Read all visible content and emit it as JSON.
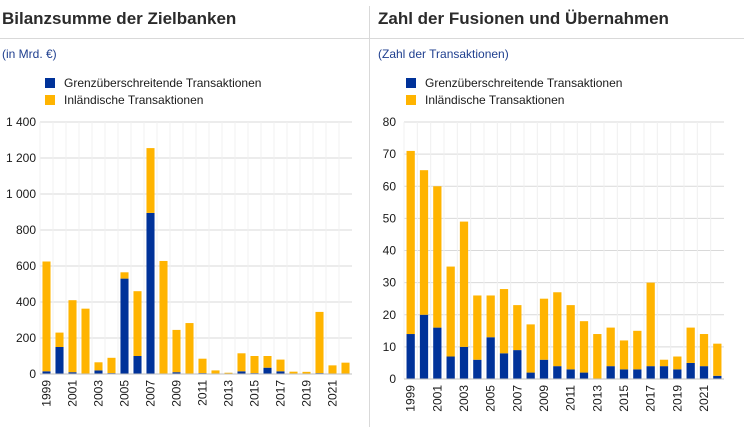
{
  "colors": {
    "cross_border": "#003299",
    "domestic": "#ffb400",
    "grid": "#d9d9d9",
    "axis": "#bfbfbf"
  },
  "chart_data": [
    {
      "type": "bar",
      "stacked": true,
      "title": "Bilanzsumme der Zielbanken",
      "unit": "(in Mrd. €)",
      "categories": [
        "1999",
        "2000",
        "2001",
        "2002",
        "2003",
        "2004",
        "2005",
        "2006",
        "2007",
        "2008",
        "2009",
        "2010",
        "2011",
        "2012",
        "2013",
        "2014",
        "2015",
        "2016",
        "2017",
        "2018",
        "2019",
        "2020",
        "2021",
        "2022"
      ],
      "x_tick_labels": [
        "1999",
        "",
        "2001",
        "",
        "2003",
        "",
        "2005",
        "",
        "2007",
        "",
        "2009",
        "",
        "2011",
        "",
        "2013",
        "",
        "2015",
        "",
        "2017",
        "",
        "2019",
        "",
        "2021",
        ""
      ],
      "ylim": [
        0,
        1400
      ],
      "y_ticks": [
        0,
        200,
        400,
        600,
        800,
        1000,
        1200,
        1400
      ],
      "y_tick_labels": [
        "0",
        "200",
        "400",
        "600",
        "800",
        "1 000",
        "1 200",
        "1 400"
      ],
      "grid": "horizontal",
      "legend_position": "top-left",
      "series": [
        {
          "name": "Grenzüberschreitende Transaktionen",
          "color": "#003299",
          "values": [
            15,
            150,
            10,
            3,
            20,
            5,
            530,
            100,
            895,
            3,
            10,
            3,
            5,
            3,
            2,
            15,
            5,
            35,
            15,
            3,
            2,
            5,
            3,
            3
          ]
        },
        {
          "name": "Inländische Transaktionen",
          "color": "#ffb400",
          "values": [
            610,
            80,
            400,
            360,
            45,
            85,
            35,
            360,
            360,
            625,
            235,
            280,
            80,
            17,
            5,
            100,
            95,
            65,
            65,
            10,
            10,
            340,
            45,
            60
          ]
        }
      ]
    },
    {
      "type": "bar",
      "stacked": true,
      "title": "Zahl der Fusionen und Übernahmen",
      "unit": "(Zahl der Transaktionen)",
      "categories": [
        "1999",
        "2000",
        "2001",
        "2002",
        "2003",
        "2004",
        "2005",
        "2006",
        "2007",
        "2008",
        "2009",
        "2010",
        "2011",
        "2012",
        "2013",
        "2014",
        "2015",
        "2016",
        "2017",
        "2018",
        "2019",
        "2020",
        "2021",
        "2022"
      ],
      "x_tick_labels": [
        "1999",
        "",
        "2001",
        "",
        "2003",
        "",
        "2005",
        "",
        "2007",
        "",
        "2009",
        "",
        "2011",
        "",
        "2013",
        "",
        "2015",
        "",
        "2017",
        "",
        "2019",
        "",
        "2021",
        ""
      ],
      "ylim": [
        0,
        80
      ],
      "y_ticks": [
        0,
        10,
        20,
        30,
        40,
        50,
        60,
        70,
        80
      ],
      "y_tick_labels": [
        "0",
        "10",
        "20",
        "30",
        "40",
        "50",
        "60",
        "70",
        "80"
      ],
      "grid": "horizontal",
      "legend_position": "top-left",
      "series": [
        {
          "name": "Grenzüberschreitende Transaktionen",
          "color": "#003299",
          "values": [
            14,
            20,
            16,
            7,
            10,
            6,
            13,
            8,
            9,
            2,
            6,
            4,
            3,
            2,
            0,
            4,
            3,
            3,
            4,
            4,
            3,
            5,
            4,
            1
          ]
        },
        {
          "name": "Inländische Transaktionen",
          "color": "#ffb400",
          "values": [
            57,
            45,
            44,
            28,
            39,
            20,
            13,
            20,
            14,
            15,
            19,
            23,
            20,
            16,
            14,
            12,
            9,
            12,
            26,
            2,
            4,
            11,
            10,
            10
          ]
        }
      ]
    }
  ]
}
